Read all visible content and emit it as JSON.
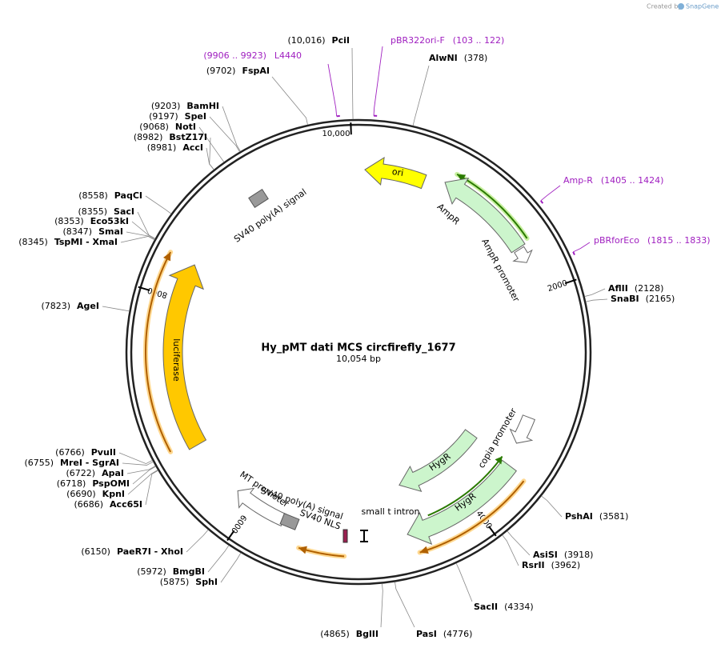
{
  "watermark": {
    "prefix": "Created by",
    "brand": "SnapGene"
  },
  "title": "Hy_pMT dati MCS circfirefly_1677",
  "length_label": "10,054 bp",
  "ticks": [
    "10,000",
    "2000",
    "4000",
    "6000",
    "8000"
  ],
  "sites": [
    {
      "position": "(10,016)",
      "name": "PciI"
    },
    {
      "position": "(378)",
      "name": "AlwNI"
    },
    {
      "position": "(9702)",
      "name": "FspAI"
    },
    {
      "position": "(9203)",
      "name": "BamHI"
    },
    {
      "position": "(9197)",
      "name": "SpeI"
    },
    {
      "position": "(9068)",
      "name": "NotI"
    },
    {
      "position": "(8982)",
      "name": "BstZ17I"
    },
    {
      "position": "(8981)",
      "name": "AccI"
    },
    {
      "position": "(8558)",
      "name": "PaqCI"
    },
    {
      "position": "(8355)",
      "name": "SacI"
    },
    {
      "position": "(8353)",
      "name": "Eco53kI"
    },
    {
      "position": "(8347)",
      "name": "SmaI"
    },
    {
      "position": "(8345)",
      "name": "TspMI - XmaI"
    },
    {
      "position": "(7823)",
      "name": "AgeI"
    },
    {
      "position": "(2128)",
      "name": "AflII"
    },
    {
      "position": "(2165)",
      "name": "SnaBI"
    },
    {
      "position": "(3581)",
      "name": "PshAI"
    },
    {
      "position": "(3918)",
      "name": "AsiSI"
    },
    {
      "position": "(3962)",
      "name": "RsrII"
    },
    {
      "position": "(4334)",
      "name": "SacII"
    },
    {
      "position": "(4776)",
      "name": "PasI"
    },
    {
      "position": "(4865)",
      "name": "BglII"
    },
    {
      "position": "(5875)",
      "name": "SphI"
    },
    {
      "position": "(5972)",
      "name": "BmgBI"
    },
    {
      "position": "(6150)",
      "name": "PaeR7I - XhoI"
    },
    {
      "position": "(6686)",
      "name": "Acc65I"
    },
    {
      "position": "(6690)",
      "name": "KpnI"
    },
    {
      "position": "(6718)",
      "name": "PspOMI"
    },
    {
      "position": "(6722)",
      "name": "ApaI"
    },
    {
      "position": "(6755)",
      "name": "MreI - SgrAI"
    },
    {
      "position": "(6766)",
      "name": "PvuII"
    }
  ],
  "primers": [
    {
      "name": "pBR322ori-F",
      "range": "(103 .. 122)"
    },
    {
      "name": "L4440",
      "range": "(9906 .. 9923)"
    },
    {
      "name": "Amp-R",
      "range": "(1405 .. 1424)"
    },
    {
      "name": "pBRforEco",
      "range": "(1815 .. 1833)"
    }
  ],
  "features": [
    {
      "label": "ori"
    },
    {
      "label": "AmpR"
    },
    {
      "label": "AmpR promoter"
    },
    {
      "label": "SV40 poly(A) signal"
    },
    {
      "label": "luciferase"
    },
    {
      "label": "HygR"
    },
    {
      "label": "HygR"
    },
    {
      "label": "copia promoter"
    },
    {
      "label": "small t intron"
    },
    {
      "label": "SV40 NLS"
    },
    {
      "label": "SV40 poly(A) signal"
    },
    {
      "label": "MT promoter"
    }
  ]
}
